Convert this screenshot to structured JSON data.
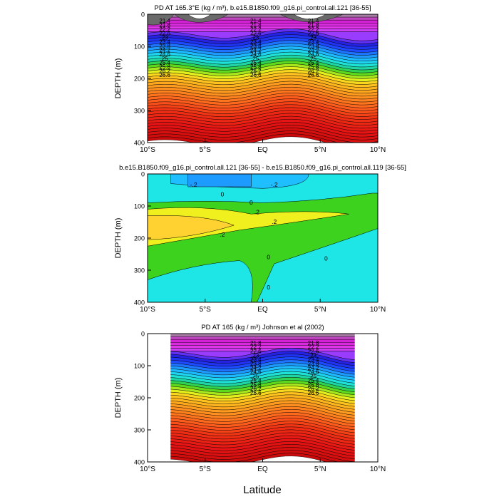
{
  "figure": {
    "shared_xlabel": "Latitude",
    "x_ticks": [
      "10°S",
      "5°S",
      "EQ",
      "5°N",
      "10°N"
    ]
  },
  "chart_data": [
    {
      "type": "heatmap",
      "title": "PD AT 165.3°E (kg / m³), b.e15.B1850.f09_g16.pi_control.all.121 [36-55]",
      "xlabel": "",
      "ylabel": "DEPTH (m)",
      "xlim": [
        -10,
        10
      ],
      "ylim": [
        400,
        0
      ],
      "x_ticks": [
        "10°S",
        "5°S",
        "EQ",
        "5°N",
        "10°N"
      ],
      "y_ticks": [
        "0",
        "100",
        "200",
        "300",
        "400"
      ],
      "contour_labels": [
        "21.4",
        "21.8",
        "22.2",
        "22.6",
        "23",
        "23.4",
        "23.8",
        "24.2",
        "24.6",
        "25",
        "25.4",
        "25.8",
        "26.2",
        "26.6"
      ]
    },
    {
      "type": "heatmap",
      "title": "b.e15.B1850.f09_g16.pi_control.all.121 [36-55] - b.e15.B1850.f09_g16.pi_control.all.119 [36-55]",
      "xlabel": "",
      "ylabel": "DEPTH (m)",
      "xlim": [
        -10,
        10
      ],
      "ylim": [
        400,
        0
      ],
      "x_ticks": [
        "10°S",
        "5°S",
        "EQ",
        "5°N",
        "10°N"
      ],
      "y_ticks": [
        "0",
        "100",
        "200",
        "300",
        "400"
      ],
      "contour_labels": [
        "-.2",
        "-.2",
        "0",
        "0",
        ".2",
        ".2",
        ".2",
        "0",
        "0",
        "0"
      ]
    },
    {
      "type": "heatmap",
      "title": "PD AT 165 (kg / m³) Johnson et al (2002)",
      "xlabel": "Latitude",
      "ylabel": "DEPTH (m)",
      "xlim": [
        -10,
        10
      ],
      "ylim": [
        400,
        0
      ],
      "data_xlim": [
        -8,
        8
      ],
      "x_ticks": [
        "10°S",
        "5°S",
        "EQ",
        "5°N",
        "10°N"
      ],
      "y_ticks": [
        "0",
        "100",
        "200",
        "300",
        "400"
      ],
      "contour_labels": [
        "21.8",
        "22.2",
        "22.6",
        "23",
        "23.4",
        "23.8",
        "24.2",
        "24.6",
        "25",
        "25.4",
        "25.8",
        "26.2",
        "26.6"
      ]
    }
  ]
}
